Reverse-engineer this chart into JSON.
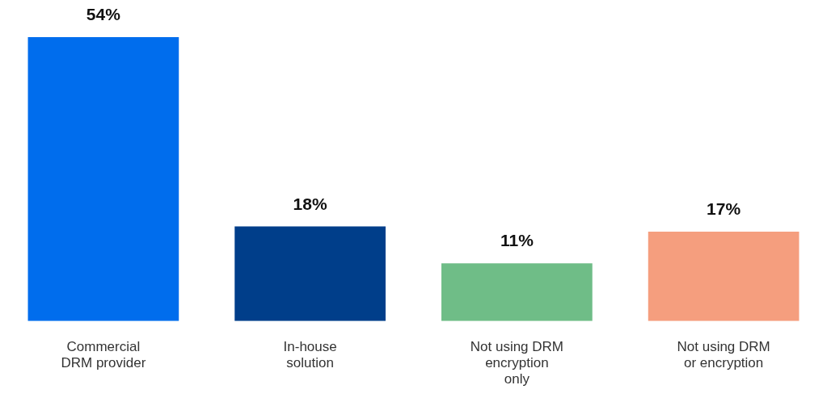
{
  "chart_data": {
    "type": "bar",
    "categories": [
      "Commercial DRM provider",
      "In-house solution",
      "Not using DRM encryption only",
      "Not using DRM or encryption"
    ],
    "values": [
      54,
      18,
      11,
      17
    ],
    "colors": [
      "#006ded",
      "#003e8a",
      "#6fbd87",
      "#f59e7e"
    ],
    "value_labels": [
      "54%",
      "18%",
      "11%",
      "17%"
    ],
    "grid": false,
    "legend": false
  }
}
